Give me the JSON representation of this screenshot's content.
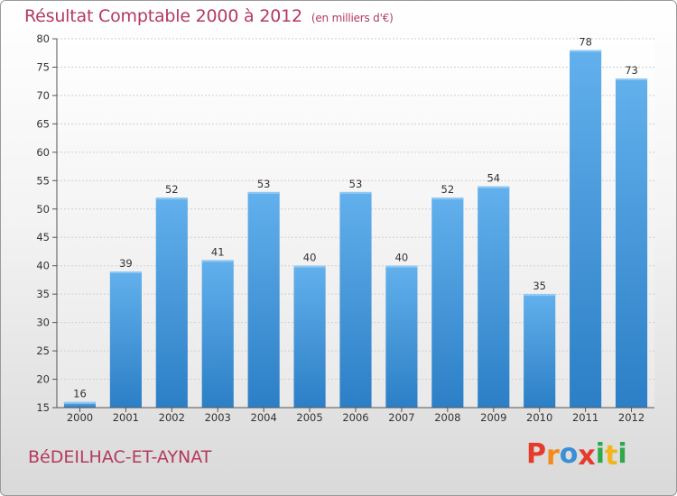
{
  "header": {
    "title": "Résultat Comptable 2000 à 2012",
    "unit": "(en milliers d'€)"
  },
  "footer": {
    "commune": "BéDEILHAC-ET-AYNAT",
    "logo_letters": [
      "P",
      "r",
      "o",
      "x",
      "i",
      "t",
      "i"
    ],
    "logo_colors": [
      "#e53b2c",
      "#f28b1c",
      "#3a8fd6",
      "#e53b2c",
      "#2ea84a",
      "#f2b51c",
      "#2ea84a"
    ]
  },
  "colors": {
    "bar": "#3d8fd4",
    "bar_light": "#5eadea",
    "title": "#b33a5e"
  },
  "chart_data": {
    "type": "bar",
    "title": "Résultat Comptable 2000 à 2012",
    "xlabel": "",
    "ylabel": "",
    "ylim": [
      15,
      80
    ],
    "yticks": [
      15,
      20,
      25,
      30,
      35,
      40,
      45,
      50,
      55,
      60,
      65,
      70,
      75,
      80
    ],
    "grid": true,
    "categories": [
      "2000",
      "2001",
      "2002",
      "2003",
      "2004",
      "2005",
      "2006",
      "2007",
      "2008",
      "2009",
      "2010",
      "2011",
      "2012"
    ],
    "values": [
      16,
      39,
      52,
      41,
      53,
      40,
      53,
      40,
      52,
      54,
      35,
      78,
      73
    ]
  }
}
